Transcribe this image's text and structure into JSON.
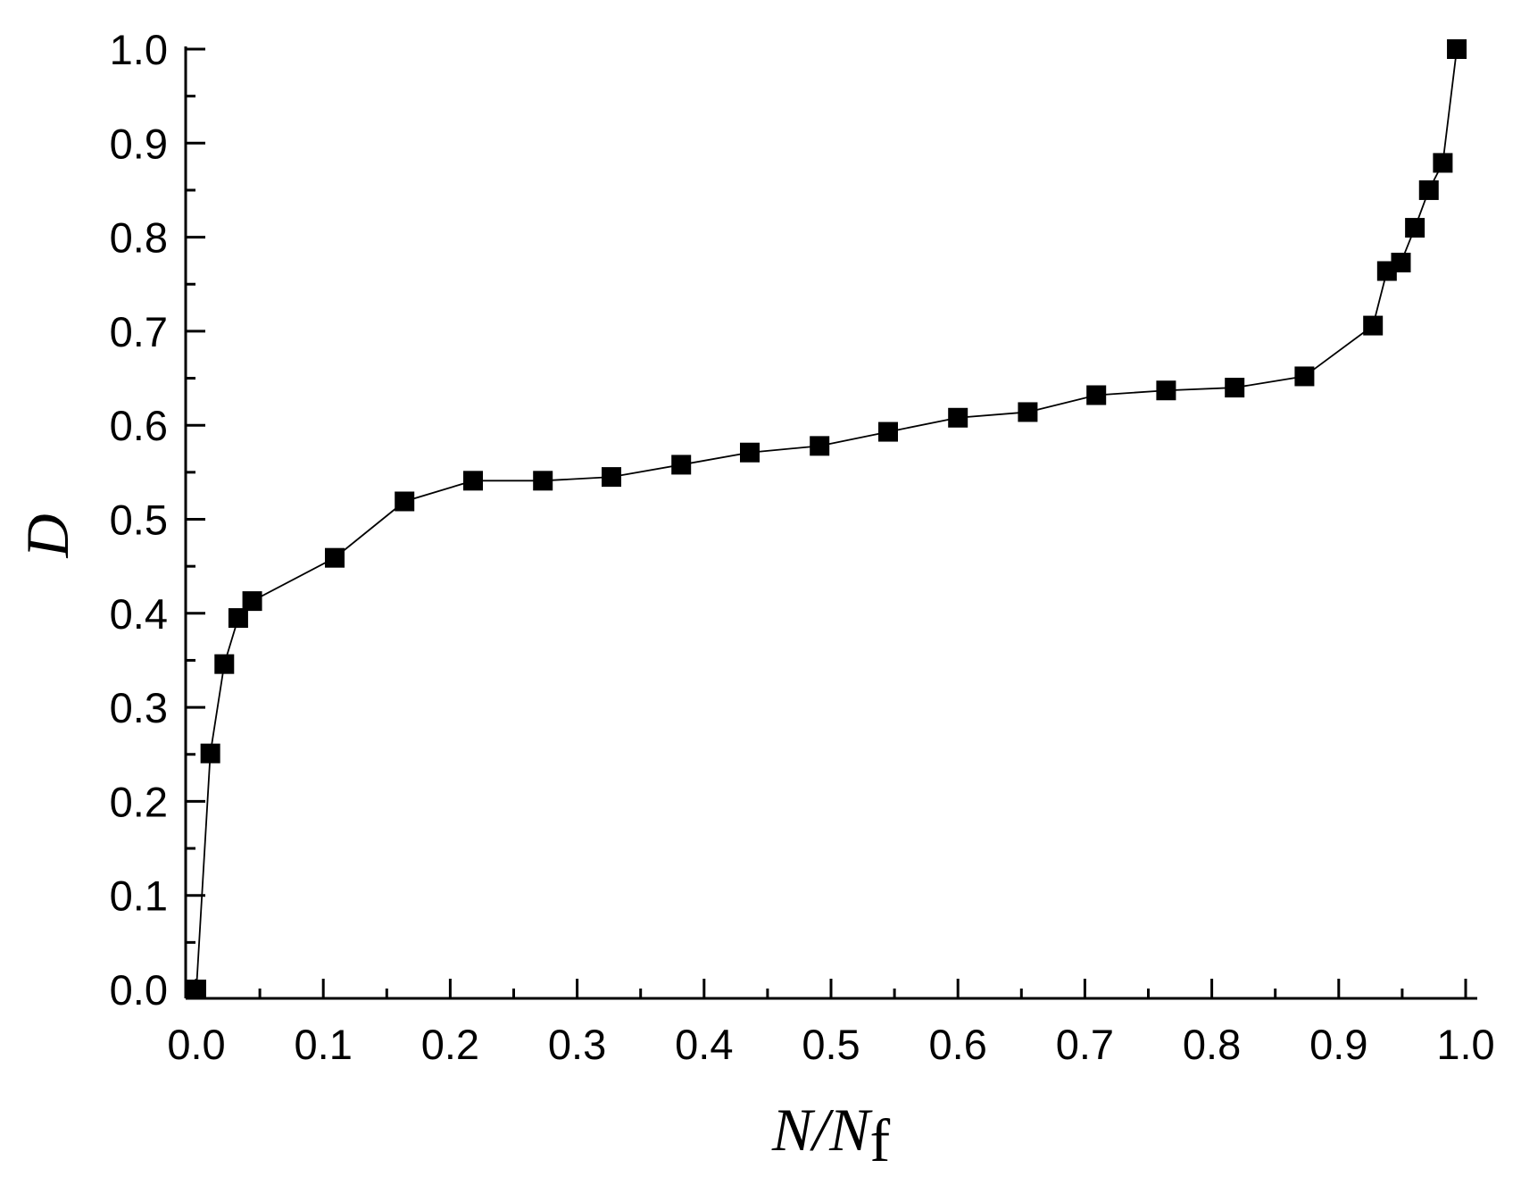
{
  "chart_data": {
    "type": "line",
    "xlabel": {
      "main": "N/N",
      "sub": "f"
    },
    "ylabel": "D",
    "xlim": [
      0.0,
      1.0
    ],
    "ylim": [
      0.0,
      1.0
    ],
    "x_ticks": [
      "0.0",
      "0.1",
      "0.2",
      "0.3",
      "0.4",
      "0.5",
      "0.6",
      "0.7",
      "0.8",
      "0.9",
      "1.0"
    ],
    "y_ticks": [
      "0.0",
      "0.1",
      "0.2",
      "0.3",
      "0.4",
      "0.5",
      "0.6",
      "0.7",
      "0.8",
      "0.9",
      "1.0"
    ],
    "marker": "filled-square",
    "color": "#000000",
    "grid": false,
    "series": [
      {
        "x": [
          0.0,
          0.011,
          0.022,
          0.033,
          0.044,
          0.109,
          0.164,
          0.218,
          0.273,
          0.327,
          0.382,
          0.436,
          0.491,
          0.545,
          0.6,
          0.655,
          0.709,
          0.764,
          0.818,
          0.873,
          0.927,
          0.938,
          0.949,
          0.96,
          0.971,
          0.982,
          0.993
        ],
        "y": [
          0.0,
          0.251,
          0.346,
          0.395,
          0.413,
          0.459,
          0.519,
          0.541,
          0.541,
          0.545,
          0.558,
          0.571,
          0.578,
          0.593,
          0.608,
          0.614,
          0.632,
          0.637,
          0.64,
          0.652,
          0.706,
          0.764,
          0.773,
          0.81,
          0.85,
          0.879,
          1.0
        ]
      }
    ]
  }
}
